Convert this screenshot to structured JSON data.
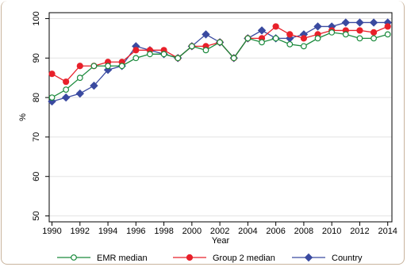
{
  "chart_data": {
    "type": "line",
    "xlabel": "Year",
    "ylabel": "%",
    "xlim": [
      1990,
      2014
    ],
    "ylim": [
      50,
      100
    ],
    "x_ticks": [
      1990,
      1992,
      1994,
      1996,
      1998,
      2000,
      2002,
      2004,
      2006,
      2008,
      2010,
      2012,
      2014
    ],
    "y_ticks": [
      50,
      60,
      70,
      80,
      90,
      100
    ],
    "x": [
      1990,
      1991,
      1992,
      1993,
      1994,
      1995,
      1996,
      1997,
      1998,
      1999,
      2000,
      2001,
      2002,
      2003,
      2004,
      2005,
      2006,
      2007,
      2008,
      2009,
      2010,
      2011,
      2012,
      2013,
      2014
    ],
    "grid": "horizontal",
    "legend_position": "bottom",
    "series": [
      {
        "name": "EMR median",
        "color": "#1a8a3c",
        "marker": "open-circle",
        "values": [
          80,
          82,
          85,
          88,
          88,
          88,
          90,
          91,
          91,
          90,
          93,
          92,
          94,
          90,
          95,
          94,
          95,
          93.5,
          93,
          95,
          96.5,
          96,
          95,
          95,
          96
        ]
      },
      {
        "name": "Group 2 median",
        "color": "#e8202a",
        "marker": "filled-circle",
        "values": [
          86,
          84,
          88,
          88,
          89,
          89,
          92,
          92,
          92,
          90,
          93,
          93,
          94,
          90,
          95,
          95,
          98,
          96,
          95,
          96,
          97,
          97,
          97,
          96.5,
          98
        ]
      },
      {
        "name": "Country",
        "color": "#3a4aa0",
        "marker": "diamond",
        "values": [
          79,
          80,
          81,
          83,
          87,
          88,
          93,
          92,
          91,
          90,
          93,
          96,
          94,
          90,
          95,
          97,
          95,
          95,
          96,
          98,
          98,
          99,
          99,
          99,
          99
        ]
      }
    ]
  }
}
